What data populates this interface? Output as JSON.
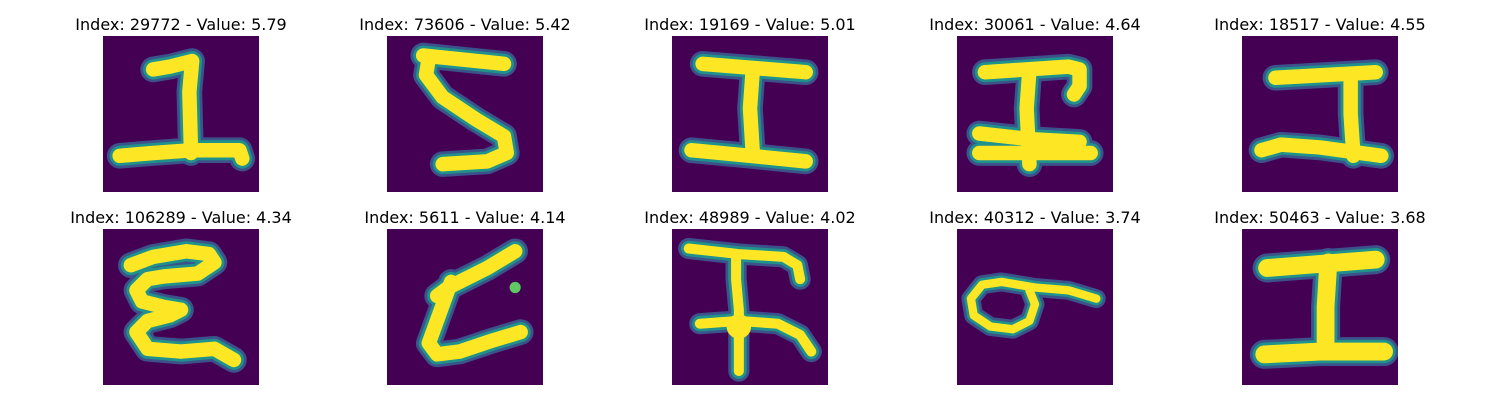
{
  "figure": {
    "panels": [
      {
        "title": "Index: 29772 - Value: 5.79",
        "index": 29772,
        "value": 5.79,
        "depicted_character": "1",
        "colormap": "viridis"
      },
      {
        "title": "Index: 73606 - Value: 5.42",
        "index": 73606,
        "value": 5.42,
        "depicted_character": "5",
        "colormap": "viridis"
      },
      {
        "title": "Index: 19169 - Value: 5.01",
        "index": 19169,
        "value": 5.01,
        "depicted_character": "I",
        "colormap": "viridis"
      },
      {
        "title": "Index: 30061 - Value: 4.64",
        "index": 30061,
        "value": 4.64,
        "depicted_character": "I",
        "colormap": "viridis"
      },
      {
        "title": "Index: 18517 - Value: 4.55",
        "index": 18517,
        "value": 4.55,
        "depicted_character": "I",
        "colormap": "viridis"
      },
      {
        "title": "Index: 106289 - Value: 4.34",
        "index": 106289,
        "value": 4.34,
        "depicted_character": "E",
        "colormap": "viridis"
      },
      {
        "title": "Index: 5611 - Value: 4.14",
        "index": 5611,
        "value": 4.14,
        "depicted_character": "L",
        "colormap": "viridis"
      },
      {
        "title": "Index: 48989 - Value: 4.02",
        "index": 48989,
        "value": 4.02,
        "depicted_character": "F",
        "colormap": "viridis"
      },
      {
        "title": "Index: 40312 - Value: 3.74",
        "index": 40312,
        "value": 3.74,
        "depicted_character": "6",
        "colormap": "viridis"
      },
      {
        "title": "Index: 50463 - Value: 3.68",
        "index": 50463,
        "value": 3.68,
        "depicted_character": "I",
        "colormap": "viridis"
      }
    ],
    "colors": {
      "background": "#440154",
      "stroke_core": "#fde725",
      "stroke_edge": "#21918c",
      "stroke_halo": "#3b528b"
    }
  }
}
